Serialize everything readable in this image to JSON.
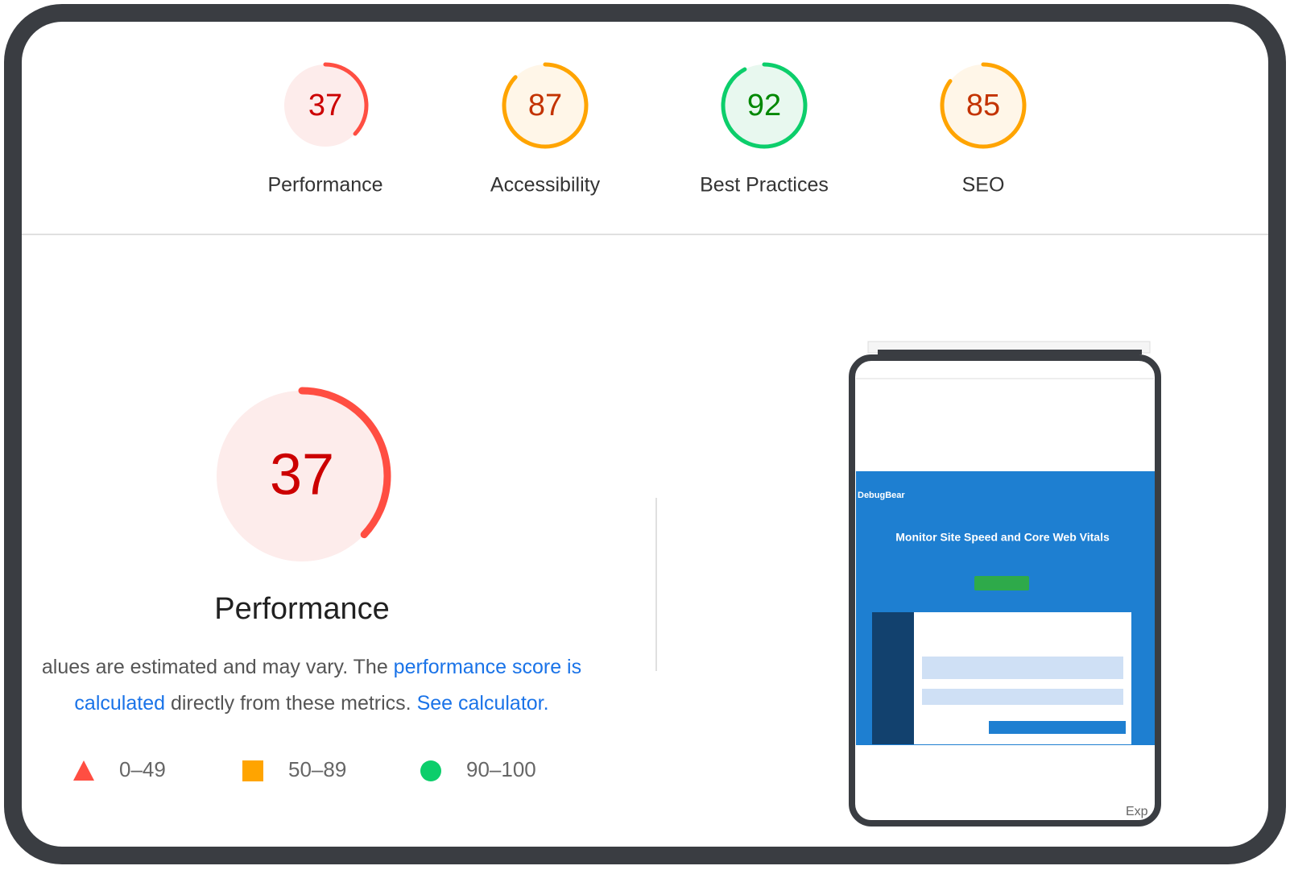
{
  "scores": [
    {
      "label": "Performance",
      "score": 37,
      "status": "fail"
    },
    {
      "label": "Accessibility",
      "score": 87,
      "status": "average"
    },
    {
      "label": "Best Practices",
      "score": 92,
      "status": "pass"
    },
    {
      "label": "SEO",
      "score": 85,
      "status": "average"
    }
  ],
  "main": {
    "score": 37,
    "status": "fail",
    "label": "Performance",
    "description": {
      "text1": "alues are estimated and may vary. The ",
      "link1": "performance score is calculated",
      "text2": " directly from these metrics. ",
      "link2": "See calculator."
    }
  },
  "legend": [
    {
      "range": "0–49",
      "status": "fail"
    },
    {
      "range": "50–89",
      "status": "average"
    },
    {
      "range": "90–100",
      "status": "pass"
    }
  ],
  "screenshot": {
    "brand": "DebugBear",
    "headline": "Monitor Site Speed and Core Web Vitals",
    "corner": "Exp"
  }
}
